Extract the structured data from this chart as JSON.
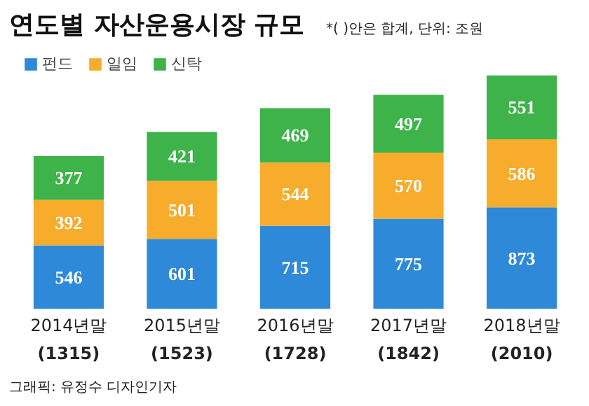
{
  "chart_data": {
    "type": "bar",
    "title": "연도별 자산운용시장 규모",
    "subtitle": "*( )안은 합계, 단위: 조원",
    "categories": [
      "2014년말",
      "2015년말",
      "2016년말",
      "2017년말",
      "2018년말"
    ],
    "series": [
      {
        "name": "펀드",
        "color": "#2e8ad8",
        "values": [
          546,
          601,
          715,
          775,
          873
        ]
      },
      {
        "name": "일임",
        "color": "#f7ac2b",
        "values": [
          392,
          501,
          544,
          570,
          586
        ]
      },
      {
        "name": "신탁",
        "color": "#3db34a",
        "values": [
          377,
          421,
          469,
          497,
          551
        ]
      }
    ],
    "stacked": true,
    "data_labels": true,
    "totals": [
      "(1315)",
      "(1523)",
      "(1728)",
      "(1842)",
      "(2010)"
    ],
    "legend": "top left",
    "grid": false,
    "annotations": [
      "그래픽: 유정수 디자인기자"
    ]
  }
}
